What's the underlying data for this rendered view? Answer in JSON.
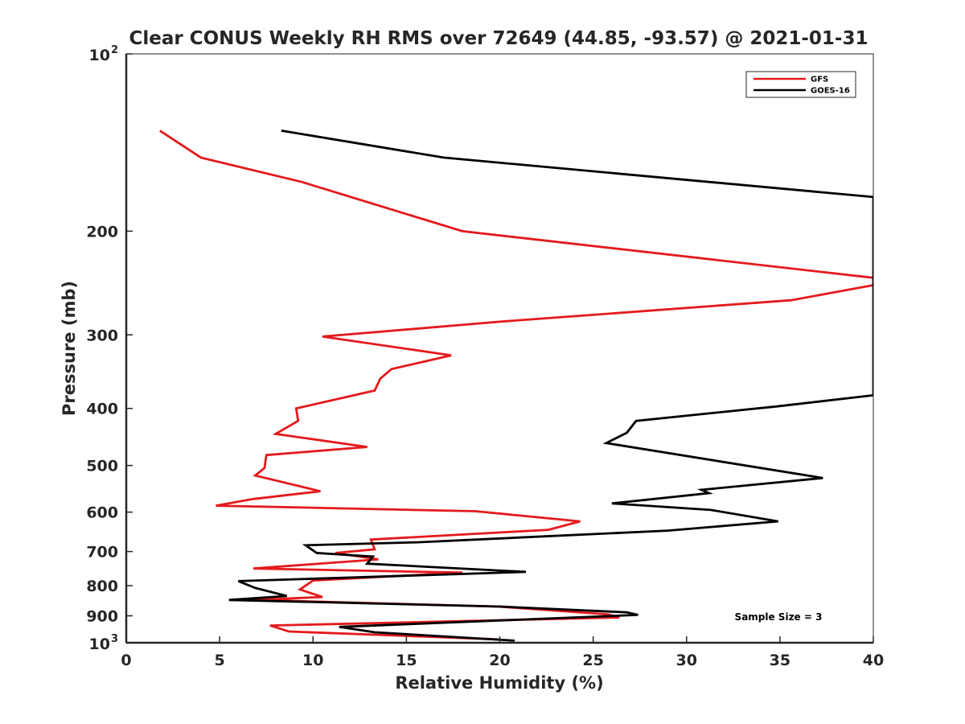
{
  "chart_data": {
    "type": "line",
    "title": "Clear CONUS Weekly RH RMS over 72649 (44.85, -93.57) @ 2021-01-31",
    "xlabel": "Relative Humidity (%)",
    "ylabel": "Pressure (mb)",
    "xlim": [
      0,
      40
    ],
    "ylim": [
      100,
      1000
    ],
    "y_scale": "log",
    "y_reversed": true,
    "x_ticks": [
      "0",
      "5",
      "10",
      "15",
      "20",
      "25",
      "30",
      "35",
      "40"
    ],
    "y_ticks": [
      {
        "value": 100,
        "base": "10",
        "exp": "2"
      },
      {
        "value": 200,
        "label": "200"
      },
      {
        "value": 300,
        "label": "300"
      },
      {
        "value": 400,
        "label": "400"
      },
      {
        "value": 500,
        "label": "500"
      },
      {
        "value": 600,
        "label": "600"
      },
      {
        "value": 700,
        "label": "700"
      },
      {
        "value": 800,
        "label": "800"
      },
      {
        "value": 900,
        "label": "900"
      },
      {
        "value": 1000,
        "base": "10",
        "exp": "3"
      }
    ],
    "grid": false,
    "legend_position": "top-right",
    "series": [
      {
        "name": "GFS",
        "color": "#e41a1c",
        "points": [
          [
            1.8,
            135
          ],
          [
            4.0,
            150
          ],
          [
            9.4,
            165
          ],
          [
            18.0,
            200
          ],
          [
            40,
            240
          ],
          [
            40,
            247
          ],
          [
            35.6,
            262
          ],
          [
            20.0,
            285
          ],
          [
            10.5,
            302
          ],
          [
            17.4,
            325
          ],
          [
            14.2,
            343
          ],
          [
            13.6,
            356
          ],
          [
            13.3,
            373
          ],
          [
            9.1,
            400
          ],
          [
            9.2,
            420
          ],
          [
            8.0,
            442
          ],
          [
            12.9,
            465
          ],
          [
            7.5,
            480
          ],
          [
            7.4,
            505
          ],
          [
            6.9,
            520
          ],
          [
            10.4,
            553
          ],
          [
            6.8,
            570
          ],
          [
            4.8,
            585
          ],
          [
            18.7,
            598
          ],
          [
            24.3,
            622
          ],
          [
            22.6,
            643
          ],
          [
            13.1,
            668
          ],
          [
            13.3,
            694
          ],
          [
            11.2,
            704
          ],
          [
            13.5,
            722
          ],
          [
            6.8,
            748
          ],
          [
            18.0,
            760
          ],
          [
            10.0,
            784
          ],
          [
            9.3,
            812
          ],
          [
            10.5,
            836
          ],
          [
            6.9,
            846
          ],
          [
            19.9,
            868
          ],
          [
            25.8,
            895
          ],
          [
            26.4,
            906
          ],
          [
            7.7,
            935
          ],
          [
            8.7,
            957
          ],
          [
            19.9,
            987
          ]
        ]
      },
      {
        "name": "GOES-16",
        "color": "#000000",
        "points": [
          [
            8.3,
            135
          ],
          [
            17.0,
            150
          ],
          [
            40,
            175
          ],
          [
            40,
            380
          ],
          [
            34.8,
            397
          ],
          [
            27.3,
            420
          ],
          [
            26.8,
            440
          ],
          [
            25.7,
            458
          ],
          [
            37.3,
            525
          ],
          [
            30.8,
            550
          ],
          [
            31.2,
            557
          ],
          [
            26.0,
            580
          ],
          [
            31.3,
            595
          ],
          [
            34.9,
            622
          ],
          [
            29.0,
            645
          ],
          [
            15.6,
            675
          ],
          [
            9.6,
            683
          ],
          [
            10.2,
            704
          ],
          [
            13.2,
            714
          ],
          [
            12.9,
            734
          ],
          [
            21.4,
            758
          ],
          [
            6.0,
            786
          ],
          [
            6.9,
            807
          ],
          [
            8.6,
            833
          ],
          [
            5.5,
            846
          ],
          [
            20.0,
            868
          ],
          [
            26.8,
            888
          ],
          [
            27.4,
            897
          ],
          [
            11.4,
            940
          ],
          [
            13.3,
            960
          ],
          [
            20.8,
            992
          ]
        ]
      }
    ],
    "annotations": [
      {
        "text": "Sample Size = 3",
        "position": "bottom-right"
      }
    ]
  }
}
